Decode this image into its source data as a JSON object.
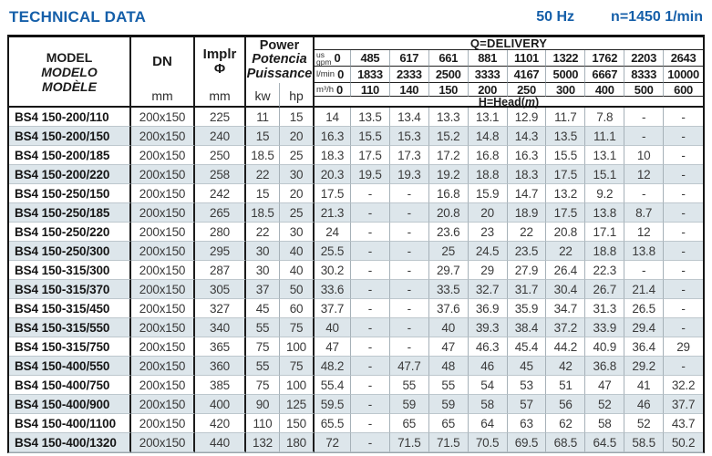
{
  "title": "TECHNICAL DATA",
  "frequency": "50 Hz",
  "speed": "n=1450 1/min",
  "colors": {
    "accent": "#155fa9",
    "stripe": "#dde6eb"
  },
  "header": {
    "model_lines": [
      "MODEL",
      "MODELO",
      "MODÈLE"
    ],
    "dn_label": "DN",
    "dn_unit": "mm",
    "implr_label": "Implr",
    "implr_symbol": "Φ",
    "implr_unit": "mm",
    "power_lines": [
      "Power",
      "Potencia",
      "Puissance"
    ],
    "kw_label": "kw",
    "hp_label": "hp",
    "delivery_title": "Q=DELIVERY",
    "head_label": {
      "pre": "H=Head(",
      "unit": "m",
      "post": ")"
    },
    "flow_rows": [
      {
        "unit_top": "us",
        "unit": "gpm",
        "zero": "0",
        "values": [
          "485",
          "617",
          "661",
          "881",
          "1101",
          "1322",
          "1762",
          "2203",
          "2643"
        ]
      },
      {
        "unit": "l/min",
        "zero": "0",
        "values": [
          "1833",
          "2333",
          "2500",
          "3333",
          "4167",
          "5000",
          "6667",
          "8333",
          "10000"
        ]
      },
      {
        "unit": "m³/h",
        "zero": "0",
        "values": [
          "110",
          "140",
          "150",
          "200",
          "250",
          "300",
          "400",
          "500",
          "600"
        ]
      }
    ]
  },
  "rows": [
    {
      "model": "BS4 150-200/110",
      "dn": "200x150",
      "implr": "225",
      "kw": "11",
      "hp": "15",
      "head": [
        "14",
        "13.5",
        "13.4",
        "13.3",
        "13.1",
        "12.9",
        "11.7",
        "7.8",
        "-",
        "-"
      ]
    },
    {
      "model": "BS4 150-200/150",
      "dn": "200x150",
      "implr": "240",
      "kw": "15",
      "hp": "20",
      "head": [
        "16.3",
        "15.5",
        "15.3",
        "15.2",
        "14.8",
        "14.3",
        "13.5",
        "11.1",
        "-",
        "-"
      ]
    },
    {
      "model": "BS4 150-200/185",
      "dn": "200x150",
      "implr": "250",
      "kw": "18.5",
      "hp": "25",
      "head": [
        "18.3",
        "17.5",
        "17.3",
        "17.2",
        "16.8",
        "16.3",
        "15.5",
        "13.1",
        "10",
        "-"
      ]
    },
    {
      "model": "BS4 150-200/220",
      "dn": "200x150",
      "implr": "258",
      "kw": "22",
      "hp": "30",
      "head": [
        "20.3",
        "19.5",
        "19.3",
        "19.2",
        "18.8",
        "18.3",
        "17.5",
        "15.1",
        "12",
        "-"
      ]
    },
    {
      "model": "BS4 150-250/150",
      "dn": "200x150",
      "implr": "242",
      "kw": "15",
      "hp": "20",
      "head": [
        "17.5",
        "-",
        "-",
        "16.8",
        "15.9",
        "14.7",
        "13.2",
        "9.2",
        "-",
        "-"
      ]
    },
    {
      "model": "BS4 150-250/185",
      "dn": "200x150",
      "implr": "265",
      "kw": "18.5",
      "hp": "25",
      "head": [
        "21.3",
        "-",
        "-",
        "20.8",
        "20",
        "18.9",
        "17.5",
        "13.8",
        "8.7",
        "-"
      ]
    },
    {
      "model": "BS4 150-250/220",
      "dn": "200x150",
      "implr": "280",
      "kw": "22",
      "hp": "30",
      "head": [
        "24",
        "-",
        "-",
        "23.6",
        "23",
        "22",
        "20.8",
        "17.1",
        "12",
        "-"
      ]
    },
    {
      "model": "BS4 150-250/300",
      "dn": "200x150",
      "implr": "295",
      "kw": "30",
      "hp": "40",
      "head": [
        "25.5",
        "-",
        "-",
        "25",
        "24.5",
        "23.5",
        "22",
        "18.8",
        "13.8",
        "-"
      ]
    },
    {
      "model": "BS4 150-315/300",
      "dn": "200x150",
      "implr": "287",
      "kw": "30",
      "hp": "40",
      "head": [
        "30.2",
        "-",
        "-",
        "29.7",
        "29",
        "27.9",
        "26.4",
        "22.3",
        "-",
        "-"
      ]
    },
    {
      "model": "BS4 150-315/370",
      "dn": "200x150",
      "implr": "305",
      "kw": "37",
      "hp": "50",
      "head": [
        "33.6",
        "-",
        "-",
        "33.5",
        "32.7",
        "31.7",
        "30.4",
        "26.7",
        "21.4",
        "-"
      ]
    },
    {
      "model": "BS4 150-315/450",
      "dn": "200x150",
      "implr": "327",
      "kw": "45",
      "hp": "60",
      "head": [
        "37.7",
        "-",
        "-",
        "37.6",
        "36.9",
        "35.9",
        "34.7",
        "31.3",
        "26.5",
        "-"
      ]
    },
    {
      "model": "BS4 150-315/550",
      "dn": "200x150",
      "implr": "340",
      "kw": "55",
      "hp": "75",
      "head": [
        "40",
        "-",
        "-",
        "40",
        "39.3",
        "38.4",
        "37.2",
        "33.9",
        "29.4",
        "-"
      ]
    },
    {
      "model": "BS4 150-315/750",
      "dn": "200x150",
      "implr": "365",
      "kw": "75",
      "hp": "100",
      "head": [
        "47",
        "-",
        "-",
        "47",
        "46.3",
        "45.4",
        "44.2",
        "40.9",
        "36.4",
        "29"
      ]
    },
    {
      "model": "BS4 150-400/550",
      "dn": "200x150",
      "implr": "360",
      "kw": "55",
      "hp": "75",
      "head": [
        "48.2",
        "-",
        "47.7",
        "48",
        "46",
        "45",
        "42",
        "36.8",
        "29.2",
        "-"
      ]
    },
    {
      "model": "BS4 150-400/750",
      "dn": "200x150",
      "implr": "385",
      "kw": "75",
      "hp": "100",
      "head": [
        "55.4",
        "-",
        "55",
        "55",
        "54",
        "53",
        "51",
        "47",
        "41",
        "32.2"
      ]
    },
    {
      "model": "BS4 150-400/900",
      "dn": "200x150",
      "implr": "400",
      "kw": "90",
      "hp": "125",
      "head": [
        "59.5",
        "-",
        "59",
        "59",
        "58",
        "57",
        "56",
        "52",
        "46",
        "37.7"
      ]
    },
    {
      "model": "BS4 150-400/1100",
      "dn": "200x150",
      "implr": "420",
      "kw": "110",
      "hp": "150",
      "head": [
        "65.5",
        "-",
        "65",
        "65",
        "64",
        "63",
        "62",
        "58",
        "52",
        "43.7"
      ]
    },
    {
      "model": "BS4 150-400/1320",
      "dn": "200x150",
      "implr": "440",
      "kw": "132",
      "hp": "180",
      "head": [
        "72",
        "-",
        "71.5",
        "71.5",
        "70.5",
        "69.5",
        "68.5",
        "64.5",
        "58.5",
        "50.2"
      ]
    }
  ]
}
